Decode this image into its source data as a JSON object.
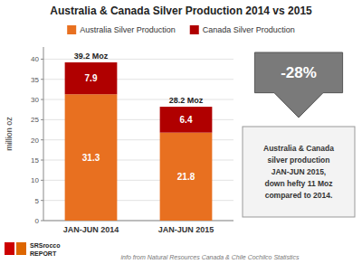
{
  "chart_data": {
    "type": "bar",
    "title": "Australia & Canada Silver Production 2014 vs 2015",
    "categories": [
      "JAN-JUN 2014",
      "JAN-JUN 2015"
    ],
    "series": [
      {
        "name": "Australia Silver Production",
        "color": "#E87020",
        "values": [
          31.3,
          21.8
        ]
      },
      {
        "name": "Canada Silver Production",
        "color": "#B00000",
        "values": [
          7.9,
          6.4
        ]
      }
    ],
    "stacked": true,
    "data_labels": true,
    "totals": [
      39.2,
      28.2
    ],
    "total_labels": [
      "39.2 Moz",
      "28.2 Moz"
    ],
    "ylabel": "million oz",
    "ylim": [
      0,
      43
    ],
    "yticks": [
      0,
      5,
      10,
      15,
      20,
      25,
      30,
      35,
      40
    ],
    "grid": true,
    "legend": "top",
    "annotations": [
      "-28%",
      "Australia & Canada\nsilver production\nJAN-JUN 2015,\ndown hefty 11 Moz\ncompared to 2014."
    ],
    "footer": "info from Natural Resources Canada & Chile Cochilco Statistics",
    "logo": [
      "SRSrocco",
      "REPORT"
    ]
  }
}
